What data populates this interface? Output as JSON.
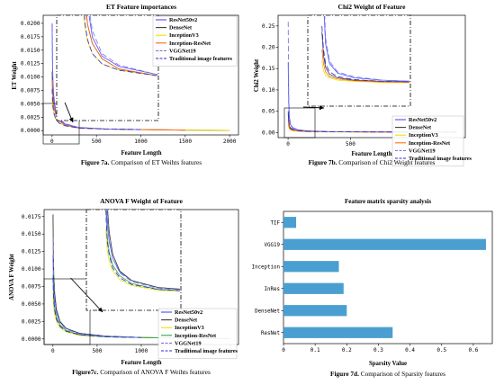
{
  "colors": {
    "ResNet50v2": "#4c4cff",
    "DenseNet": "#3b3b3b",
    "InceptionV3": "#f0e000",
    "Inception-ResNet": "#ff6a1a",
    "Inception-ResNet-b": "#2aa84a",
    "VGGNet19": "#7a7ae0",
    "Traditional image features": "#2b2bd8",
    "bar": "#4a9fd0"
  },
  "charts": [
    {
      "id": "a",
      "chart_data": {
        "type": "line",
        "title": "ET Feature importances",
        "xlabel": "Feature Length",
        "ylabel": "ET Weight",
        "xlim": [
          -100,
          2100
        ],
        "ylim": [
          -0.0008,
          0.0215
        ],
        "xticks": [
          0,
          500,
          1000,
          1500,
          2000
        ],
        "yticks": [
          0.0,
          0.0025,
          0.005,
          0.0075,
          0.01,
          0.0125,
          0.015,
          0.0175,
          0.02
        ],
        "ytick_labels": [
          "0.0000",
          "0.0025",
          "0.0050",
          "0.0075",
          "0.0100",
          "0.0125",
          "0.0150",
          "0.0175",
          "0.0200"
        ],
        "legend": "top-right",
        "series": [
          {
            "name": "ResNet50v2",
            "key": "ResNet50v2",
            "dash": "",
            "x": [
              1,
              5,
              10,
              20,
              40,
              80,
              150,
              300,
              600,
              1000,
              1500
            ],
            "y": [
              0.02,
              0.0125,
              0.009,
              0.006,
              0.0035,
              0.002,
              0.0012,
              0.0006,
              0.0003,
              0.0002,
              0.0001
            ]
          },
          {
            "name": "DenseNet",
            "key": "DenseNet",
            "dash": "",
            "x": [
              1,
              5,
              10,
              20,
              40,
              80,
              150,
              300,
              600,
              1000,
              1500,
              2000
            ],
            "y": [
              0.011,
              0.008,
              0.0065,
              0.0045,
              0.003,
              0.0018,
              0.001,
              0.0005,
              0.0003,
              0.0002,
              0.0001,
              5e-05
            ]
          },
          {
            "name": "InceptionV3",
            "key": "InceptionV3",
            "dash": "",
            "x": [
              1,
              5,
              10,
              20,
              40,
              80,
              150,
              300,
              600,
              1000,
              1500,
              2000
            ],
            "y": [
              0.006,
              0.005,
              0.0042,
              0.0032,
              0.0022,
              0.0014,
              0.0009,
              0.0005,
              0.0003,
              0.0002,
              0.0001,
              5e-05
            ]
          },
          {
            "name": "Inception-ResNet",
            "key": "Inception-ResNet",
            "dash": "",
            "x": [
              1,
              5,
              10,
              20,
              40,
              80,
              150,
              300,
              600,
              1000,
              1500
            ],
            "y": [
              0.0095,
              0.0075,
              0.006,
              0.0045,
              0.003,
              0.0018,
              0.001,
              0.0005,
              0.0003,
              0.0002,
              0.0001
            ]
          },
          {
            "name": "VGGNet19",
            "key": "VGGNet19",
            "dash": "6,3",
            "x": [
              1,
              5,
              10,
              20,
              40,
              80,
              150,
              300,
              600,
              1000
            ],
            "y": [
              0.0185,
              0.012,
              0.009,
              0.0065,
              0.004,
              0.0022,
              0.0013,
              0.0006,
              0.0003,
              0.0002
            ]
          },
          {
            "name": "Traditional image features",
            "key": "Traditional image features",
            "dash": "6,3",
            "x": [
              1,
              5,
              10,
              20,
              40,
              80,
              150,
              300,
              600,
              1000
            ],
            "y": [
              0.0078,
              0.0058,
              0.0045,
              0.0033,
              0.0022,
              0.0014,
              0.0009,
              0.0005,
              0.0003,
              0.0002
            ]
          }
        ]
      },
      "caption_bold": "Figure 7a.",
      "caption_rest": " Comparison of ET Weihts features"
    },
    {
      "id": "b",
      "chart_data": {
        "type": "line",
        "title": "Chi2 Weight of Feature",
        "xlabel": "Feature Length",
        "ylabel": "Chi2 Weight",
        "xlim": [
          -80,
          1420
        ],
        "ylim": [
          -0.012,
          0.275
        ],
        "xticks": [
          0,
          500,
          1000
        ],
        "yticks": [
          0.0,
          0.05,
          0.1,
          0.15,
          0.2,
          0.25
        ],
        "ytick_labels": [
          "0.00",
          "0.05",
          "0.10",
          "0.15",
          "0.20",
          "0.25"
        ],
        "legend": "bottom-right",
        "series": [
          {
            "name": "ResNet50v2",
            "key": "ResNet50v2",
            "dash": "",
            "x": [
              1,
              5,
              10,
              20,
              40,
              80,
              150,
              300,
              600,
              1000,
              1350
            ],
            "y": [
              0.165,
              0.07,
              0.035,
              0.018,
              0.01,
              0.006,
              0.004,
              0.002,
              0.0015,
              0.001,
              0.001
            ]
          },
          {
            "name": "DenseNet",
            "key": "DenseNet",
            "dash": "",
            "x": [
              1,
              5,
              10,
              20,
              40,
              80,
              150,
              300,
              600,
              1000,
              1350
            ],
            "y": [
              0.045,
              0.025,
              0.015,
              0.009,
              0.006,
              0.004,
              0.003,
              0.002,
              0.0015,
              0.001,
              0.001
            ]
          },
          {
            "name": "InceptionV3",
            "key": "InceptionV3",
            "dash": "",
            "x": [
              1,
              5,
              10,
              20,
              40,
              80,
              150,
              300,
              600,
              1000,
              1350
            ],
            "y": [
              0.02,
              0.012,
              0.008,
              0.006,
              0.004,
              0.003,
              0.002,
              0.0015,
              0.001,
              0.001,
              0.001
            ]
          },
          {
            "name": "Inception-ResNet",
            "key": "Inception-ResNet",
            "dash": "",
            "x": [
              1,
              5,
              10,
              20,
              40,
              80,
              150,
              300,
              600,
              1000,
              1350
            ],
            "y": [
              0.03,
              0.018,
              0.011,
              0.007,
              0.005,
              0.0035,
              0.0025,
              0.0018,
              0.0012,
              0.001,
              0.001
            ]
          },
          {
            "name": "VGGNet19",
            "key": "VGGNet19",
            "dash": "6,3",
            "x": [
              1,
              5,
              10,
              20,
              40,
              80,
              150,
              300,
              600,
              1000,
              1350
            ],
            "y": [
              0.26,
              0.09,
              0.04,
              0.02,
              0.011,
              0.007,
              0.004,
              0.002,
              0.0015,
              0.001,
              0.001
            ]
          },
          {
            "name": "Traditional image features",
            "key": "Traditional image features",
            "dash": "6,3",
            "x": [
              1,
              5,
              10,
              20,
              40,
              80,
              150,
              300,
              600,
              1000,
              1350
            ],
            "y": [
              0.05,
              0.03,
              0.018,
              0.011,
              0.007,
              0.0045,
              0.003,
              0.002,
              0.0015,
              0.001,
              0.001
            ]
          }
        ]
      },
      "caption_bold": "Figure 7b.",
      "caption_rest": " Comparison of Chi2 Weight features"
    },
    {
      "id": "c",
      "chart_data": {
        "type": "line",
        "title": "ANOVA F Weight of Feature",
        "xlabel": "Feature Length",
        "ylabel": "ANOVA F Weight",
        "xlim": [
          -100,
          2100
        ],
        "ylim": [
          -0.0008,
          0.0185
        ],
        "xticks": [
          0,
          500,
          1000,
          1500,
          2000
        ],
        "yticks": [
          0.0,
          0.0025,
          0.005,
          0.0075,
          0.01,
          0.0125,
          0.015,
          0.0175
        ],
        "ytick_labels": [
          "0.0000",
          "0.0025",
          "0.0050",
          "0.0075",
          "0.0100",
          "0.0125",
          "0.0150",
          "0.0175"
        ],
        "legend": "right",
        "series": [
          {
            "name": "ResNet50v2",
            "key": "ResNet50v2",
            "dash": "",
            "x": [
              1,
              5,
              10,
              20,
              40,
              80,
              150,
              300,
              600,
              1000,
              1500,
              2000
            ],
            "y": [
              0.012,
              0.009,
              0.0072,
              0.0055,
              0.0038,
              0.0024,
              0.0015,
              0.0008,
              0.0004,
              0.0002,
              0.0001,
              5e-05
            ]
          },
          {
            "name": "DenseNet",
            "key": "DenseNet",
            "dash": "",
            "x": [
              1,
              5,
              10,
              20,
              40,
              80,
              150,
              300,
              600,
              1000,
              1500,
              2000
            ],
            "y": [
              0.0178,
              0.012,
              0.009,
              0.0065,
              0.0042,
              0.0025,
              0.0015,
              0.0008,
              0.0004,
              0.0002,
              0.0001,
              5e-05
            ]
          },
          {
            "name": "InceptionV3",
            "key": "InceptionV3",
            "dash": "",
            "x": [
              1,
              5,
              10,
              20,
              40,
              80,
              150,
              300,
              600,
              1000,
              1500,
              2000
            ],
            "y": [
              0.0068,
              0.0055,
              0.0045,
              0.0035,
              0.0025,
              0.0016,
              0.001,
              0.0005,
              0.0003,
              0.0002,
              0.0001,
              5e-05
            ]
          },
          {
            "name": "Inception-ResNet",
            "key": "Inception-ResNet-b",
            "dash": "",
            "x": [
              1,
              5,
              10,
              20,
              40,
              80,
              150,
              300,
              600,
              1000,
              1500,
              2000
            ],
            "y": [
              0.0092,
              0.0072,
              0.0058,
              0.0044,
              0.0031,
              0.002,
              0.0012,
              0.0006,
              0.0003,
              0.0002,
              0.0001,
              5e-05
            ]
          },
          {
            "name": "VGGNet19",
            "key": "VGGNet19",
            "dash": "6,3",
            "x": [
              1,
              5,
              10,
              20,
              40,
              80,
              150,
              300,
              600,
              1000
            ],
            "y": [
              0.0145,
              0.0105,
              0.008,
              0.0058,
              0.0038,
              0.0023,
              0.0014,
              0.0007,
              0.0004,
              0.0002
            ]
          },
          {
            "name": "Traditional image features",
            "key": "Traditional image features",
            "dash": "6,3",
            "x": [
              1,
              5,
              10,
              20,
              40,
              80,
              150,
              300,
              600,
              1000
            ],
            "y": [
              0.0088,
              0.0068,
              0.0054,
              0.0041,
              0.0028,
              0.0018,
              0.0011,
              0.0006,
              0.0003,
              0.0002
            ]
          }
        ]
      },
      "caption_bold": "Figure7c.",
      "caption_rest": " Comparison of ANOVA F Weihts features"
    },
    {
      "id": "d",
      "chart_data": {
        "type": "bar",
        "orientation": "horizontal",
        "title": "Feature matrix sparsity analysis",
        "xlabel": "Sparsity Value",
        "ylabel": "",
        "xlim": [
          0,
          0.66
        ],
        "xticks": [
          0.0,
          0.1,
          0.2,
          0.3,
          0.4,
          0.5,
          0.6
        ],
        "xtick_labels": [
          "0",
          "0.1",
          "0.2",
          "0.3",
          "0.4",
          "0.5",
          "0.6"
        ],
        "categories": [
          "ResNet",
          "DenseNet",
          "InRes",
          "Inception",
          "VGG19",
          "TIF"
        ],
        "values": [
          0.345,
          0.2,
          0.19,
          0.175,
          0.64,
          0.04
        ]
      },
      "caption_bold": "Figure 7d.",
      "caption_rest": " Comparison of Sparsity features"
    }
  ]
}
